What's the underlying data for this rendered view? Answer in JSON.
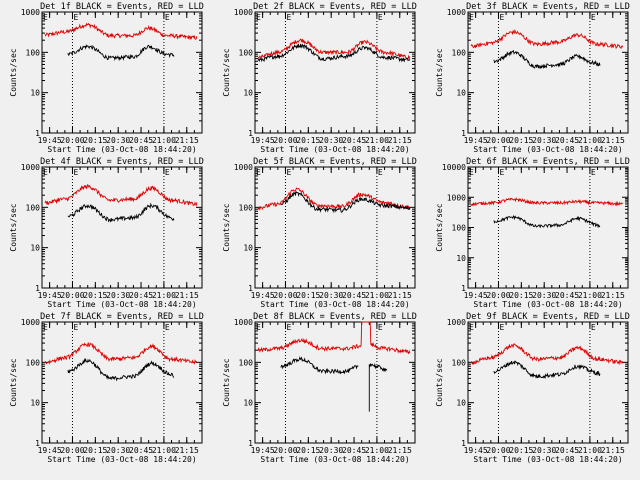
{
  "time_axis": {
    "tick_labels": [
      "19:45",
      "20:00",
      "20:15",
      "20:30",
      "20:45",
      "21:00",
      "21:15"
    ],
    "tick_minutes": [
      1185,
      1200,
      1215,
      1230,
      1245,
      1260,
      1275
    ],
    "range_minutes": [
      1180,
      1285
    ],
    "xlabel": "Start Time (03-Oct-08 18:44:20)"
  },
  "colors": {
    "events": "#000000",
    "lld": "#dd0000",
    "background": "#f0f0f0",
    "axes": "#000000"
  },
  "chart_data": [
    {
      "type": "line",
      "title": "Det 1f BLACK = Events, RED = LLD",
      "ylabel": "Counts/sec",
      "yscale": "log",
      "ylim": [
        1,
        1000
      ],
      "ytick_labels": [
        "1",
        "10",
        "100",
        "1000"
      ],
      "marker_labels": [
        "E",
        "E"
      ],
      "marker_times": [
        1200,
        1260
      ],
      "series": [
        {
          "name": "BLACK = Events",
          "color": "#000000",
          "time_range": [
            1197,
            1267
          ],
          "knots": [
            [
              1197,
              90
            ],
            [
              1210,
              140
            ],
            [
              1225,
              72
            ],
            [
              1240,
              78
            ],
            [
              1250,
              140
            ],
            [
              1262,
              90
            ],
            [
              1267,
              85
            ]
          ]
        },
        {
          "name": "RED = LLD",
          "color": "#dd0000",
          "time_range": [
            1182,
            1282
          ],
          "knots": [
            [
              1182,
              270
            ],
            [
              1195,
              320
            ],
            [
              1210,
              480
            ],
            [
              1225,
              260
            ],
            [
              1240,
              260
            ],
            [
              1250,
              400
            ],
            [
              1262,
              260
            ],
            [
              1282,
              230
            ]
          ]
        }
      ]
    },
    {
      "type": "line",
      "title": "Det 2f BLACK = Events, RED = LLD",
      "ylabel": "Counts/sec",
      "yscale": "log",
      "ylim": [
        1,
        1000
      ],
      "ytick_labels": [
        "1",
        "10",
        "100",
        "1000"
      ],
      "marker_labels": [
        "E",
        "E"
      ],
      "marker_times": [
        1200,
        1260
      ],
      "series": [
        {
          "name": "BLACK = Events",
          "color": "#000000",
          "time_range": [
            1182,
            1282
          ],
          "knots": [
            [
              1182,
              65
            ],
            [
              1195,
              80
            ],
            [
              1210,
              150
            ],
            [
              1225,
              70
            ],
            [
              1240,
              80
            ],
            [
              1252,
              130
            ],
            [
              1265,
              75
            ],
            [
              1282,
              65
            ]
          ]
        },
        {
          "name": "RED = LLD",
          "color": "#dd0000",
          "time_range": [
            1182,
            1282
          ],
          "knots": [
            [
              1182,
              75
            ],
            [
              1195,
              100
            ],
            [
              1210,
              200
            ],
            [
              1225,
              100
            ],
            [
              1240,
              100
            ],
            [
              1252,
              180
            ],
            [
              1265,
              100
            ],
            [
              1282,
              75
            ]
          ]
        }
      ]
    },
    {
      "type": "line",
      "title": "Det 3f BLACK = Events, RED = LLD",
      "ylabel": "Counts/sec",
      "yscale": "log",
      "ylim": [
        1,
        1000
      ],
      "ytick_labels": [
        "1",
        "10",
        "100",
        "1000"
      ],
      "marker_labels": [
        "E",
        "E"
      ],
      "marker_times": [
        1200,
        1260
      ],
      "series": [
        {
          "name": "BLACK = Events",
          "color": "#000000",
          "time_range": [
            1197,
            1267
          ],
          "knots": [
            [
              1197,
              60
            ],
            [
              1210,
              100
            ],
            [
              1225,
              45
            ],
            [
              1240,
              50
            ],
            [
              1252,
              80
            ],
            [
              1262,
              55
            ],
            [
              1267,
              50
            ]
          ]
        },
        {
          "name": "RED = LLD",
          "color": "#dd0000",
          "time_range": [
            1182,
            1282
          ],
          "knots": [
            [
              1182,
              140
            ],
            [
              1195,
              170
            ],
            [
              1210,
              320
            ],
            [
              1225,
              160
            ],
            [
              1240,
              180
            ],
            [
              1252,
              270
            ],
            [
              1265,
              160
            ],
            [
              1282,
              140
            ]
          ]
        }
      ]
    },
    {
      "type": "line",
      "title": "Det 4f BLACK = Events, RED = LLD",
      "ylabel": "Counts/sec",
      "yscale": "log",
      "ylim": [
        1,
        1000
      ],
      "ytick_labels": [
        "1",
        "10",
        "100",
        "1000"
      ],
      "marker_labels": [
        "E",
        "E"
      ],
      "marker_times": [
        1200,
        1260
      ],
      "series": [
        {
          "name": "BLACK = Events",
          "color": "#000000",
          "time_range": [
            1197,
            1267
          ],
          "knots": [
            [
              1197,
              60
            ],
            [
              1210,
              110
            ],
            [
              1225,
              50
            ],
            [
              1240,
              55
            ],
            [
              1252,
              110
            ],
            [
              1265,
              55
            ],
            [
              1267,
              50
            ]
          ]
        },
        {
          "name": "RED = LLD",
          "color": "#dd0000",
          "time_range": [
            1182,
            1282
          ],
          "knots": [
            [
              1182,
              130
            ],
            [
              1195,
              160
            ],
            [
              1210,
              330
            ],
            [
              1225,
              150
            ],
            [
              1240,
              160
            ],
            [
              1252,
              300
            ],
            [
              1265,
              150
            ],
            [
              1282,
              120
            ]
          ]
        }
      ]
    },
    {
      "type": "line",
      "title": "Det 5f BLACK = Events, RED = LLD",
      "ylabel": "Counts/sec",
      "yscale": "log",
      "ylim": [
        1,
        1000
      ],
      "ytick_labels": [
        "1",
        "10",
        "100",
        "1000"
      ],
      "marker_labels": [
        "E",
        "E"
      ],
      "marker_times": [
        1200,
        1260
      ],
      "series": [
        {
          "name": "BLACK = Events",
          "color": "#000000",
          "time_range": [
            1197,
            1282
          ],
          "knots": [
            [
              1197,
              120
            ],
            [
              1207,
              220
            ],
            [
              1222,
              90
            ],
            [
              1237,
              85
            ],
            [
              1250,
              160
            ],
            [
              1265,
              110
            ],
            [
              1282,
              95
            ]
          ]
        },
        {
          "name": "RED = LLD",
          "color": "#dd0000",
          "time_range": [
            1182,
            1282
          ],
          "knots": [
            [
              1182,
              100
            ],
            [
              1195,
              120
            ],
            [
              1207,
              280
            ],
            [
              1222,
              110
            ],
            [
              1237,
              105
            ],
            [
              1250,
              210
            ],
            [
              1265,
              130
            ],
            [
              1282,
              100
            ]
          ]
        }
      ]
    },
    {
      "type": "line",
      "title": "Det 6f BLACK = Events, RED = LLD",
      "ylabel": "Counts/sec",
      "yscale": "log",
      "ylim": [
        1,
        10000
      ],
      "ytick_labels": [
        "1",
        "10",
        "100",
        "1000",
        "10000"
      ],
      "marker_labels": [
        "E",
        "E"
      ],
      "marker_times": [
        1200,
        1260
      ],
      "series": [
        {
          "name": "BLACK = Events",
          "color": "#000000",
          "time_range": [
            1197,
            1267
          ],
          "knots": [
            [
              1197,
              160
            ],
            [
              1210,
              220
            ],
            [
              1225,
              110
            ],
            [
              1240,
              120
            ],
            [
              1252,
              200
            ],
            [
              1267,
              115
            ]
          ]
        },
        {
          "name": "RED = LLD",
          "color": "#dd0000",
          "time_range": [
            1182,
            1282
          ],
          "knots": [
            [
              1182,
              600
            ],
            [
              1195,
              650
            ],
            [
              1210,
              850
            ],
            [
              1225,
              650
            ],
            [
              1240,
              650
            ],
            [
              1252,
              720
            ],
            [
              1265,
              650
            ],
            [
              1282,
              600
            ]
          ]
        }
      ]
    },
    {
      "type": "line",
      "title": "Det 7f BLACK = Events, RED = LLD",
      "ylabel": "Counts/sec",
      "yscale": "log",
      "ylim": [
        1,
        1000
      ],
      "ytick_labels": [
        "1",
        "10",
        "100",
        "1000"
      ],
      "marker_labels": [
        "E",
        "E"
      ],
      "marker_times": [
        1200,
        1260
      ],
      "series": [
        {
          "name": "BLACK = Events",
          "color": "#000000",
          "time_range": [
            1197,
            1267
          ],
          "knots": [
            [
              1197,
              60
            ],
            [
              1210,
              110
            ],
            [
              1225,
              40
            ],
            [
              1240,
              45
            ],
            [
              1252,
              95
            ],
            [
              1265,
              50
            ],
            [
              1267,
              45
            ]
          ]
        },
        {
          "name": "RED = LLD",
          "color": "#dd0000",
          "time_range": [
            1182,
            1282
          ],
          "knots": [
            [
              1182,
              100
            ],
            [
              1195,
              130
            ],
            [
              1210,
              280
            ],
            [
              1225,
              120
            ],
            [
              1240,
              130
            ],
            [
              1252,
              250
            ],
            [
              1265,
              120
            ],
            [
              1282,
              100
            ]
          ]
        }
      ]
    },
    {
      "type": "line",
      "title": "Det 8f BLACK = Events, RED = LLD",
      "ylabel": "Counts/sec",
      "yscale": "log",
      "ylim": [
        1,
        1000
      ],
      "ytick_labels": [
        "1",
        "10",
        "100",
        "1000"
      ],
      "marker_labels": [
        "E",
        "E"
      ],
      "marker_times": [
        1200,
        1260
      ],
      "series": [
        {
          "name": "BLACK = Events",
          "color": "#000000",
          "time_range": [
            1197,
            1267
          ],
          "knots": [
            [
              1197,
              80
            ],
            [
              1210,
              120
            ],
            [
              1225,
              60
            ],
            [
              1240,
              60
            ],
            [
              1248,
              80
            ]
          ],
          "gap": [
            1248,
            1255
          ],
          "spike_down_at": 1255,
          "spike_down_value": 6,
          "knots_after": [
            [
              1255,
              90
            ],
            [
              1262,
              75
            ],
            [
              1267,
              60
            ]
          ]
        },
        {
          "name": "RED = LLD",
          "color": "#dd0000",
          "time_range": [
            1182,
            1282
          ],
          "knots": [
            [
              1182,
              200
            ],
            [
              1195,
              220
            ],
            [
              1210,
              350
            ],
            [
              1225,
              220
            ],
            [
              1240,
              220
            ],
            [
              1248,
              250
            ],
            [
              1252,
              300
            ],
            [
              1265,
              220
            ],
            [
              1282,
              180
            ]
          ],
          "spike_up": [
            1250,
            1256
          ],
          "spike_up_value": 1000
        }
      ]
    },
    {
      "type": "line",
      "title": "Det 9f BLACK = Events, RED = LLD",
      "ylabel": "Counts/sec",
      "yscale": "log",
      "ylim": [
        1,
        1000
      ],
      "ytick_labels": [
        "1",
        "10",
        "100",
        "1000"
      ],
      "marker_labels": [
        "E",
        "E"
      ],
      "marker_times": [
        1200,
        1260
      ],
      "series": [
        {
          "name": "BLACK = Events",
          "color": "#000000",
          "time_range": [
            1197,
            1267
          ],
          "knots": [
            [
              1197,
              60
            ],
            [
              1210,
              100
            ],
            [
              1225,
              45
            ],
            [
              1240,
              50
            ],
            [
              1252,
              80
            ],
            [
              1265,
              55
            ],
            [
              1267,
              50
            ]
          ]
        },
        {
          "name": "RED = LLD",
          "color": "#dd0000",
          "time_range": [
            1182,
            1282
          ],
          "knots": [
            [
              1182,
              100
            ],
            [
              1195,
              130
            ],
            [
              1210,
              260
            ],
            [
              1225,
              120
            ],
            [
              1240,
              130
            ],
            [
              1252,
              230
            ],
            [
              1265,
              120
            ],
            [
              1282,
              100
            ]
          ]
        }
      ]
    }
  ]
}
